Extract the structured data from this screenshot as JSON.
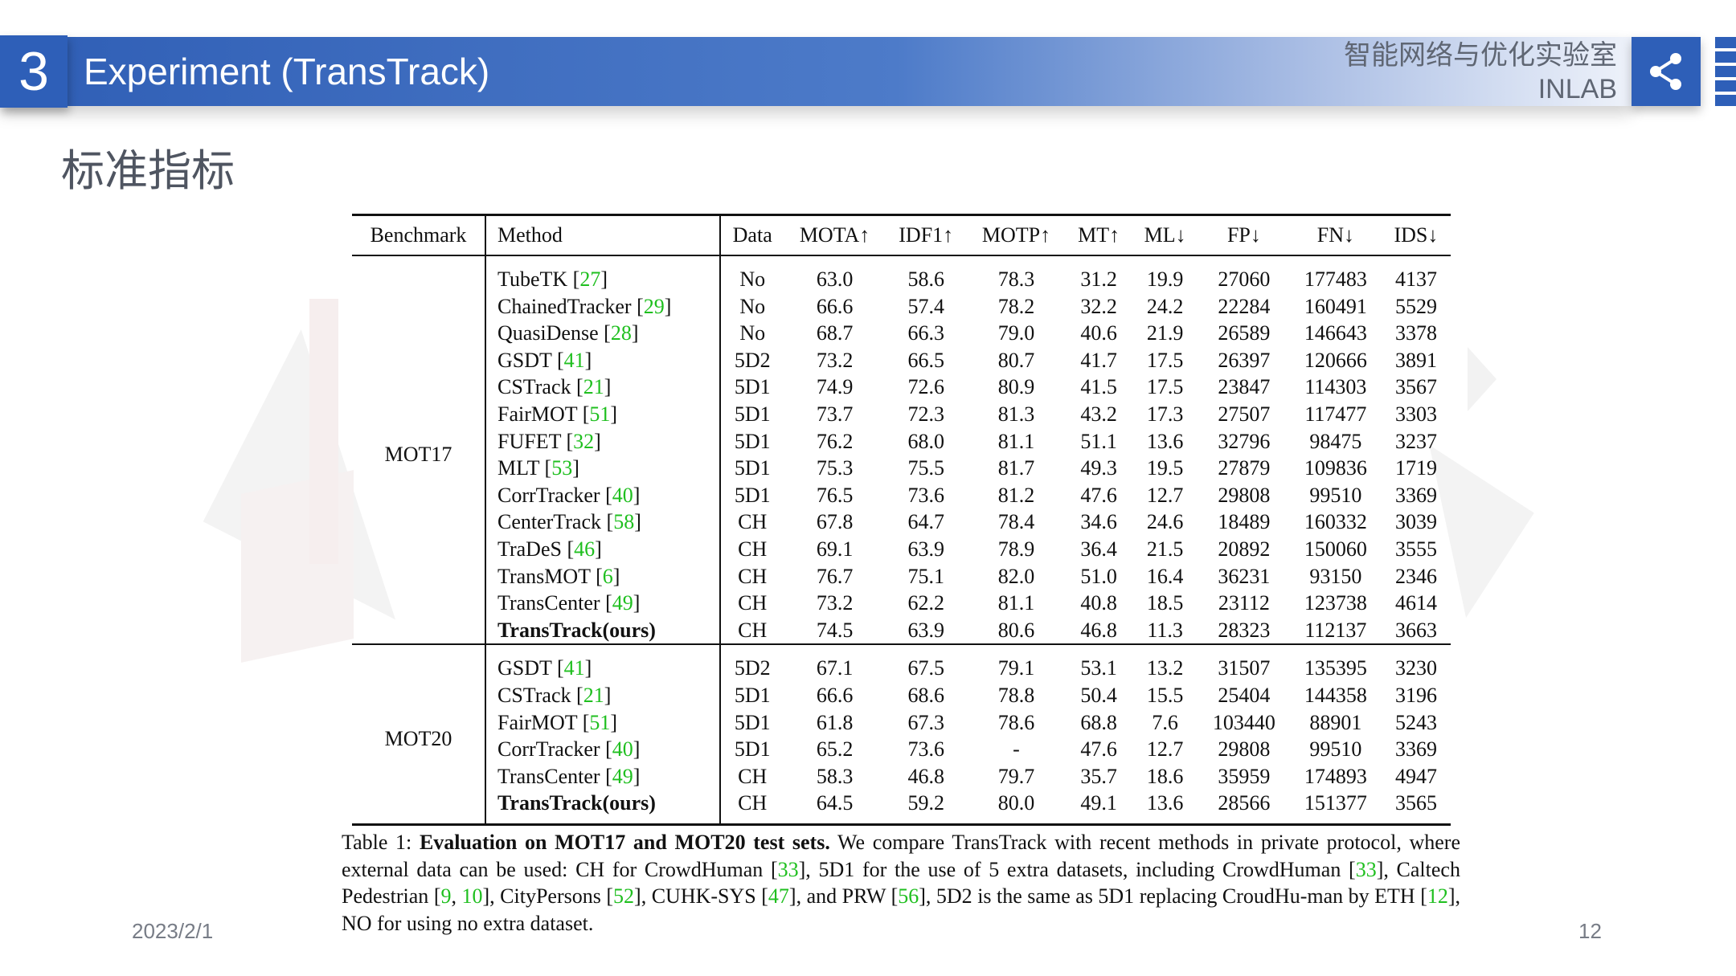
{
  "header": {
    "section_number": "3",
    "title": "Experiment (TransTrack)",
    "lab_name_cn": "智能网络与优化实验室",
    "lab_name_en": "INLAB",
    "share_icon": "share-icon"
  },
  "subtitle": "标准指标",
  "table": {
    "columns": [
      "Benchmark",
      "Method",
      "Data",
      "MOTA↑",
      "IDF1↑",
      "MOTP↑",
      "MT↑",
      "ML↓",
      "FP↓",
      "FN↓",
      "IDS↓"
    ],
    "groups": [
      {
        "benchmark": "MOT17",
        "rows": [
          {
            "name": "TubeTK",
            "ref": "27",
            "data": "No",
            "values": [
              "63.0",
              "58.6",
              "78.3",
              "31.2",
              "19.9",
              "27060",
              "177483",
              "4137"
            ]
          },
          {
            "name": "ChainedTracker",
            "ref": "29",
            "data": "No",
            "values": [
              "66.6",
              "57.4",
              "78.2",
              "32.2",
              "24.2",
              "22284",
              "160491",
              "5529"
            ]
          },
          {
            "name": "QuasiDense",
            "ref": "28",
            "data": "No",
            "values": [
              "68.7",
              "66.3",
              "79.0",
              "40.6",
              "21.9",
              "26589",
              "146643",
              "3378"
            ]
          },
          {
            "name": "GSDT",
            "ref": "41",
            "data": "5D2",
            "values": [
              "73.2",
              "66.5",
              "80.7",
              "41.7",
              "17.5",
              "26397",
              "120666",
              "3891"
            ]
          },
          {
            "name": "CSTrack",
            "ref": "21",
            "data": "5D1",
            "values": [
              "74.9",
              "72.6",
              "80.9",
              "41.5",
              "17.5",
              "23847",
              "114303",
              "3567"
            ]
          },
          {
            "name": "FairMOT",
            "ref": "51",
            "data": "5D1",
            "values": [
              "73.7",
              "72.3",
              "81.3",
              "43.2",
              "17.3",
              "27507",
              "117477",
              "3303"
            ]
          },
          {
            "name": "FUFET",
            "ref": "32",
            "data": "5D1",
            "values": [
              "76.2",
              "68.0",
              "81.1",
              "51.1",
              "13.6",
              "32796",
              "98475",
              "3237"
            ]
          },
          {
            "name": "MLT",
            "ref": "53",
            "data": "5D1",
            "values": [
              "75.3",
              "75.5",
              "81.7",
              "49.3",
              "19.5",
              "27879",
              "109836",
              "1719"
            ]
          },
          {
            "name": "CorrTracker",
            "ref": "40",
            "data": "5D1",
            "values": [
              "76.5",
              "73.6",
              "81.2",
              "47.6",
              "12.7",
              "29808",
              "99510",
              "3369"
            ]
          },
          {
            "name": "CenterTrack",
            "ref": "58",
            "data": "CH",
            "values": [
              "67.8",
              "64.7",
              "78.4",
              "34.6",
              "24.6",
              "18489",
              "160332",
              "3039"
            ]
          },
          {
            "name": "TraDeS",
            "ref": "46",
            "data": "CH",
            "values": [
              "69.1",
              "63.9",
              "78.9",
              "36.4",
              "21.5",
              "20892",
              "150060",
              "3555"
            ]
          },
          {
            "name": "TransMOT",
            "ref": "6",
            "data": "CH",
            "values": [
              "76.7",
              "75.1",
              "82.0",
              "51.0",
              "16.4",
              "36231",
              "93150",
              "2346"
            ]
          },
          {
            "name": "TransCenter",
            "ref": "49",
            "data": "CH",
            "values": [
              "73.2",
              "62.2",
              "81.1",
              "40.8",
              "18.5",
              "23112",
              "123738",
              "4614"
            ]
          },
          {
            "name": "TransTrack(ours)",
            "ref": "",
            "data": "CH",
            "values": [
              "74.5",
              "63.9",
              "80.6",
              "46.8",
              "11.3",
              "28323",
              "112137",
              "3663"
            ]
          }
        ]
      },
      {
        "benchmark": "MOT20",
        "rows": [
          {
            "name": "GSDT",
            "ref": "41",
            "data": "5D2",
            "values": [
              "67.1",
              "67.5",
              "79.1",
              "53.1",
              "13.2",
              "31507",
              "135395",
              "3230"
            ]
          },
          {
            "name": "CSTrack",
            "ref": "21",
            "data": "5D1",
            "values": [
              "66.6",
              "68.6",
              "78.8",
              "50.4",
              "15.5",
              "25404",
              "144358",
              "3196"
            ]
          },
          {
            "name": "FairMOT",
            "ref": "51",
            "data": "5D1",
            "values": [
              "61.8",
              "67.3",
              "78.6",
              "68.8",
              "7.6",
              "103440",
              "88901",
              "5243"
            ]
          },
          {
            "name": "CorrTracker",
            "ref": "40",
            "data": "5D1",
            "values": [
              "65.2",
              "73.6",
              "-",
              "47.6",
              "12.7",
              "29808",
              "99510",
              "3369"
            ]
          },
          {
            "name": "TransCenter",
            "ref": "49",
            "data": "CH",
            "values": [
              "58.3",
              "46.8",
              "79.7",
              "35.7",
              "18.6",
              "35959",
              "174893",
              "4947"
            ]
          },
          {
            "name": "TransTrack(ours)",
            "ref": "",
            "data": "CH",
            "values": [
              "64.5",
              "59.2",
              "80.0",
              "49.1",
              "13.6",
              "28566",
              "151377",
              "3565"
            ]
          }
        ]
      }
    ]
  },
  "caption": {
    "label": "Table 1:",
    "title": "Evaluation on MOT17 and MOT20 test sets.",
    "segments": [
      {
        "t": " We compare TransTrack with recent methods in private protocol, where external data can be used: CH for CrowdHuman ["
      },
      {
        "t": "33",
        "ref": true
      },
      {
        "t": "], 5D1 for the use of 5 extra datasets, including CrowdHuman ["
      },
      {
        "t": "33",
        "ref": true
      },
      {
        "t": "], Caltech Pedestrian ["
      },
      {
        "t": "9",
        "ref": true
      },
      {
        "t": ", "
      },
      {
        "t": "10",
        "ref": true
      },
      {
        "t": "], CityPersons ["
      },
      {
        "t": "52",
        "ref": true
      },
      {
        "t": "], CUHK-SYS ["
      },
      {
        "t": "47",
        "ref": true
      },
      {
        "t": "], and PRW ["
      },
      {
        "t": "56",
        "ref": true
      },
      {
        "t": "], 5D2 is the same as 5D1 replacing CroudHu-man by ETH ["
      },
      {
        "t": "12",
        "ref": true
      },
      {
        "t": "], NO for using no extra dataset."
      }
    ]
  },
  "footer": {
    "date": "2023/2/1",
    "page_number": "12"
  },
  "colors": {
    "header_blue": "#2e5fb8",
    "citation_green": "#1fbf1f",
    "footer_gray": "#777c86"
  }
}
